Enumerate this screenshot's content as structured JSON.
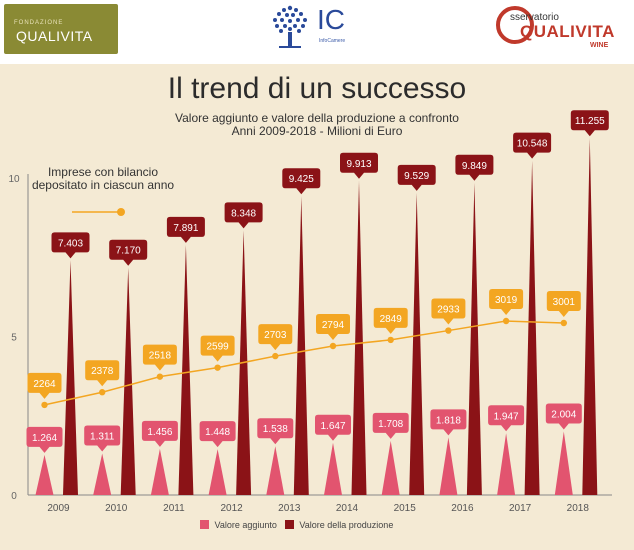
{
  "header": {
    "left_logo": {
      "text_small": "FONDAZIONE",
      "text_big": "QUALIVITA"
    },
    "center_logo": {
      "text": "IC",
      "sub": "InfoCamere"
    },
    "right_logo": {
      "line1": "sservatorio",
      "line2": "QUALIVITA",
      "line3": "WINE"
    }
  },
  "colors": {
    "panel_bg": "#f4ead4",
    "valore_aggiunto": "#e2546f",
    "valore_produzione": "#8b1317",
    "imprese": "#f3a622"
  },
  "chart_data": {
    "type": "bar",
    "title": "Il trend di un successo",
    "subtitle_lines": [
      "Valore aggiunto e valore della produzione a confronto",
      "Anni 2009-2018 - Milioni di Euro"
    ],
    "categories": [
      "2009",
      "2010",
      "2011",
      "2012",
      "2013",
      "2014",
      "2015",
      "2016",
      "2017",
      "2018"
    ],
    "ylim": [
      0,
      10
    ],
    "yticks": [
      "0",
      "5",
      "10"
    ],
    "series": [
      {
        "name": "Valore aggiunto",
        "values": [
          1.264,
          1.311,
          1.456,
          1.448,
          1.538,
          1.647,
          1.708,
          1.818,
          1.947,
          2.004
        ],
        "labels": [
          "1.264",
          "1.311",
          "1.456",
          "1.448",
          "1.538",
          "1.647",
          "1.708",
          "1.818",
          "1.947",
          "2.004"
        ]
      },
      {
        "name": "Valore della produzione",
        "values": [
          7.403,
          7.17,
          7.891,
          8.348,
          9.425,
          9.913,
          9.529,
          9.849,
          10.548,
          11.255
        ],
        "labels": [
          "7.403",
          "7.170",
          "7.891",
          "8.348",
          "9.425",
          "9.913",
          "9.529",
          "9.849",
          "10.548",
          "11.255"
        ]
      }
    ],
    "line_series": {
      "name": "Imprese con bilancio depositato in ciascun anno",
      "values": [
        2264,
        2378,
        2518,
        2599,
        2703,
        2794,
        2849,
        2933,
        3019,
        3001
      ],
      "labels": [
        "2264",
        "2378",
        "2518",
        "2599",
        "2703",
        "2794",
        "2849",
        "2933",
        "3019",
        "3001"
      ]
    },
    "legend_placement": "bottom",
    "grid": false
  }
}
